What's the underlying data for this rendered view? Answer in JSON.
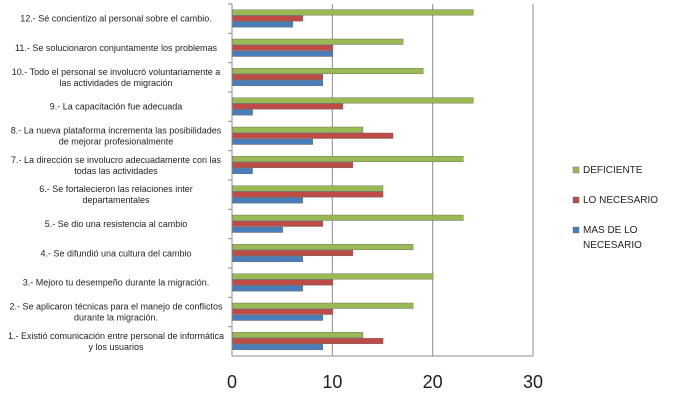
{
  "chart_data": {
    "type": "bar",
    "orientation": "horizontal",
    "categories": [
      [
        "1.- Existió comunicación entre personal de informática",
        "y los usuarios"
      ],
      [
        "2.- Se aplicaron técnicas para el manejo de conflictos",
        "durante la migración."
      ],
      [
        "3.- Mejoro tu desempeño durante la migración."
      ],
      [
        "4.- Se difundió una cultura del cambio"
      ],
      [
        "5.- Se dio una resistencia al cambio"
      ],
      [
        "6.- Se fortalecieron las relaciones inter",
        "departamentales"
      ],
      [
        "7.- La dirección se involucro adecuadamente con las",
        "todas las actividades"
      ],
      [
        "8.- La nueva plataforma incrementa las posibilidades",
        "de mejorar profesionalmente"
      ],
      [
        "9.- La capacitación fue adecuada"
      ],
      [
        "10.- Todo el personal se involucró voluntariamente a",
        "las actividades de migración"
      ],
      [
        "11.- Se solucionaron conjuntamente los problemas"
      ],
      [
        "12.- Sé concientizo al personal sobre el cambio."
      ]
    ],
    "series": [
      {
        "name": "MAS DE LO NECESARIO",
        "color": "#4a7ebb",
        "values": [
          9,
          9,
          7,
          7,
          5,
          7,
          2,
          8,
          2,
          9,
          10,
          6
        ]
      },
      {
        "name": "LO NECESARIO",
        "color": "#be4b48",
        "values": [
          15,
          10,
          10,
          12,
          9,
          15,
          12,
          16,
          11,
          9,
          10,
          7
        ]
      },
      {
        "name": "DEFICIENTE",
        "color": "#98b954",
        "values": [
          13,
          18,
          20,
          18,
          23,
          15,
          23,
          13,
          24,
          19,
          17,
          24
        ]
      }
    ],
    "legend": [
      {
        "name": "DEFICIENTE",
        "color": "#98b954",
        "lines": [
          "DEFICIENTE"
        ]
      },
      {
        "name": "LO NECESARIO",
        "color": "#be4b48",
        "lines": [
          "LO NECESARIO"
        ]
      },
      {
        "name": "MAS DE LO NECESARIO",
        "color": "#4a7ebb",
        "lines": [
          "MAS DE LO",
          "NECESARIO"
        ]
      }
    ],
    "xlim": [
      0,
      30
    ],
    "xticks": [
      0,
      10,
      20,
      30
    ],
    "grid": "vertical",
    "legend_position": "right"
  }
}
